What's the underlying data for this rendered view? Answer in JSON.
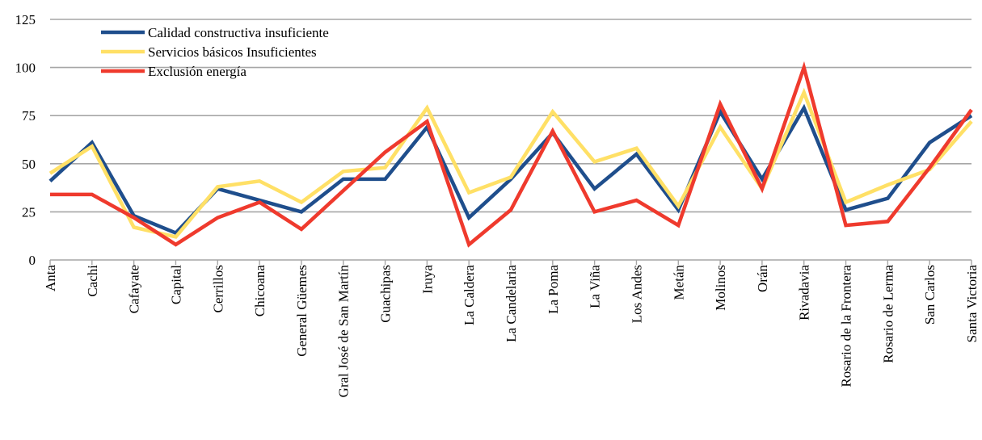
{
  "chart_data": {
    "type": "line",
    "title": "",
    "xlabel": "",
    "ylabel": "",
    "ylim": [
      0,
      125
    ],
    "yticks": [
      0,
      25,
      50,
      75,
      100,
      125
    ],
    "grid": true,
    "legend_position": "top-left",
    "categories": [
      "Anta",
      "Cachi",
      "Cafayate",
      "Capital",
      "Cerrillos",
      "Chicoana",
      "General Güemes",
      "Gral José de San Martín",
      "Guachipas",
      "Iruya",
      "La Caldera",
      "La Candelaria",
      "La Poma",
      "La Viña",
      "Los Andes",
      "Metán",
      "Molinos",
      "Orán",
      "Rivadavia",
      "Rosario de la Frontera",
      "Rosario de Lerma",
      "San Carlos",
      "Santa Victoria"
    ],
    "series": [
      {
        "name": "Calidad constructiva insuficiente",
        "color": "#1f4e8c",
        "values": [
          41,
          61,
          23,
          14,
          37,
          31,
          25,
          42,
          42,
          69,
          22,
          42,
          66,
          37,
          55,
          26,
          77,
          42,
          79,
          26,
          32,
          61,
          75
        ]
      },
      {
        "name": "Servicios básicos Insuficientes",
        "color": "#ffe066",
        "values": [
          45,
          59,
          17,
          12,
          38,
          41,
          30,
          46,
          48,
          79,
          35,
          43,
          77,
          51,
          58,
          28,
          69,
          37,
          87,
          30,
          39,
          47,
          72
        ]
      },
      {
        "name": "Exclusión energía",
        "color": "#ef3a2d",
        "values": [
          34,
          34,
          22,
          8,
          22,
          30,
          16,
          36,
          56,
          72,
          8,
          26,
          67,
          25,
          31,
          18,
          81,
          37,
          100,
          18,
          20,
          48,
          78
        ]
      }
    ]
  }
}
